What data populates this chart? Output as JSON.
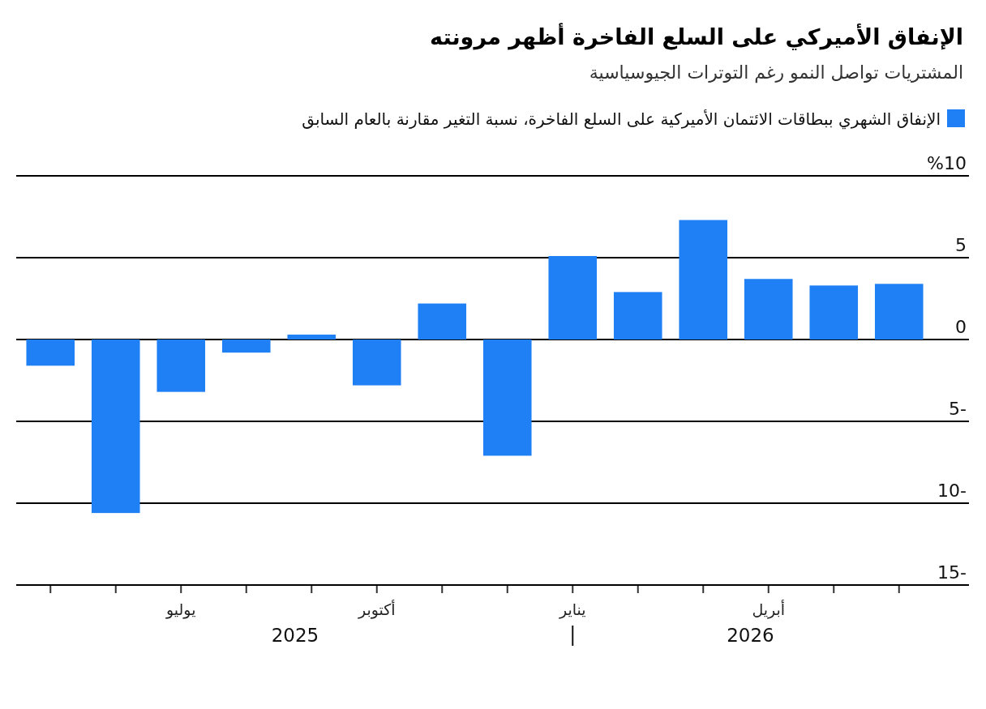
{
  "chart_data": {
    "type": "bar",
    "title": "الإنفاق الأميركي على السلع الفاخرة أظهر مرونته",
    "subtitle": "المشتريات تواصل النمو رغم التوترات الجيوسياسية",
    "categories": [
      null,
      null,
      "يوليو",
      null,
      null,
      "أكتوبر",
      null,
      null,
      "يناير",
      null,
      null,
      "أبريل",
      null,
      null
    ],
    "series": [
      {
        "name": "الإنفاق الشهري ببطاقات الائتمان الأميركية على السلع الفاخرة، نسبة التغير مقارنة بالعام السابق",
        "color": "#1f7ff5",
        "values": [
          -1.6,
          -10.6,
          -3.2,
          -0.8,
          0.3,
          -2.8,
          2.2,
          -7.1,
          5.1,
          2.9,
          7.3,
          3.7,
          3.3,
          3.4
        ]
      }
    ],
    "ylim": [
      -15,
      10
    ],
    "yticks": [
      {
        "value": 10,
        "label": "%10"
      },
      5,
      0,
      {
        "value": -5,
        "label": "5-"
      },
      {
        "value": -10,
        "label": "10-"
      },
      {
        "value": -15,
        "label": "15-"
      }
    ],
    "grid": "y",
    "legend": "top",
    "annotations": [
      "2025",
      "2026"
    ]
  }
}
